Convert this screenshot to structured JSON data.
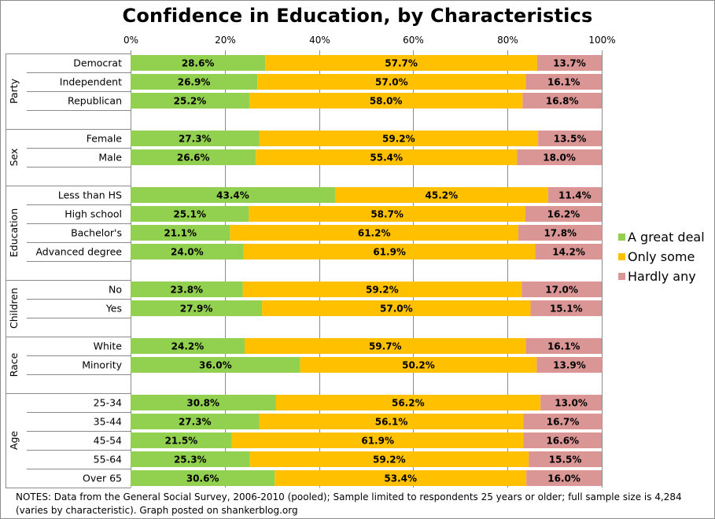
{
  "chart_data": {
    "type": "bar",
    "orientation": "horizontal",
    "stacked": "100%",
    "title": "Confidence in Education, by Characteristics",
    "xlabel": "",
    "ylabel": "",
    "xlim": [
      0,
      100
    ],
    "x_ticks": [
      "0%",
      "20%",
      "40%",
      "60%",
      "80%",
      "100%"
    ],
    "grid": true,
    "legend_position": "right",
    "series": [
      {
        "name": "A great deal",
        "color": "#92d050"
      },
      {
        "name": "Only some",
        "color": "#ffc000"
      },
      {
        "name": "Hardly any",
        "color": "#da9694"
      }
    ],
    "groups": [
      {
        "name": "Party",
        "rows": [
          {
            "label": "Democrat",
            "values": [
              28.6,
              57.7,
              13.7
            ]
          },
          {
            "label": "Independent",
            "values": [
              26.9,
              57.0,
              16.1
            ]
          },
          {
            "label": "Republican",
            "values": [
              25.2,
              58.0,
              16.8
            ]
          }
        ]
      },
      {
        "name": "Sex",
        "rows": [
          {
            "label": "Female",
            "values": [
              27.3,
              59.2,
              13.5
            ]
          },
          {
            "label": "Male",
            "values": [
              26.6,
              55.4,
              18.0
            ]
          }
        ]
      },
      {
        "name": "Education",
        "rows": [
          {
            "label": "Less than HS",
            "values": [
              43.4,
              45.2,
              11.4
            ]
          },
          {
            "label": "High school",
            "values": [
              25.1,
              58.7,
              16.2
            ]
          },
          {
            "label": "Bachelor's",
            "values": [
              21.1,
              61.2,
              17.8
            ]
          },
          {
            "label": "Advanced degree",
            "values": [
              24.0,
              61.9,
              14.2
            ]
          }
        ]
      },
      {
        "name": "Children",
        "rows": [
          {
            "label": "No",
            "values": [
              23.8,
              59.2,
              17.0
            ]
          },
          {
            "label": "Yes",
            "values": [
              27.9,
              57.0,
              15.1
            ]
          }
        ]
      },
      {
        "name": "Race",
        "rows": [
          {
            "label": "White",
            "values": [
              24.2,
              59.7,
              16.1
            ]
          },
          {
            "label": "Minority",
            "values": [
              36.0,
              50.2,
              13.9
            ]
          }
        ]
      },
      {
        "name": "Age",
        "rows": [
          {
            "label": "25-34",
            "values": [
              30.8,
              56.2,
              13.0
            ]
          },
          {
            "label": "35-44",
            "values": [
              27.3,
              56.1,
              16.7
            ]
          },
          {
            "label": "45-54",
            "values": [
              21.5,
              61.9,
              16.6
            ]
          },
          {
            "label": "55-64",
            "values": [
              25.3,
              59.2,
              15.5
            ]
          },
          {
            "label": "Over 65",
            "values": [
              30.6,
              53.4,
              16.0
            ]
          }
        ]
      }
    ],
    "notes": "NOTES: Data from the General Social Survey, 2006-2010 (pooled); Sample limited  to respondents 25 years or older;  full sample size is 4,284 (varies by characteristic).  Graph posted on shankerblog.org"
  }
}
